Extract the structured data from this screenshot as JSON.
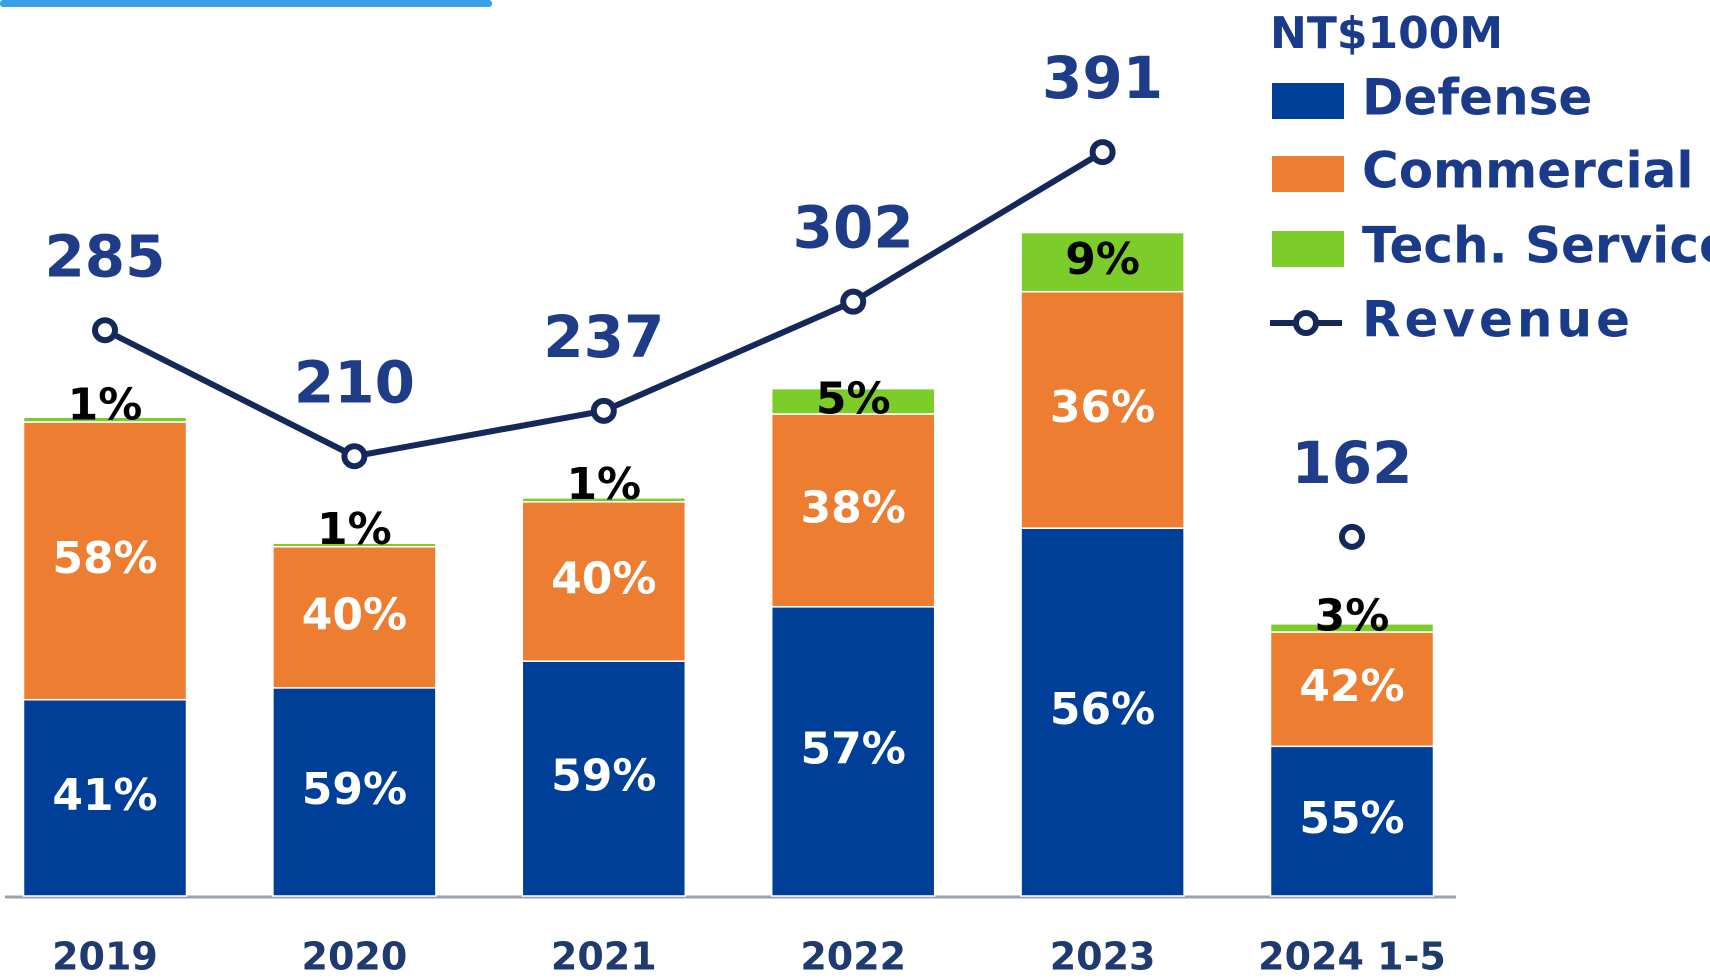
{
  "chart_data": {
    "type": "bar",
    "unit": "NT$100M",
    "categories": [
      "2019",
      "2020",
      "2021",
      "2022",
      "2023",
      "2024 1-5"
    ],
    "series": [
      {
        "name": "Defense",
        "color": "#003f97",
        "values": [
          41,
          59,
          59,
          57,
          56,
          55
        ],
        "value_labels": [
          "41%",
          "59%",
          "59%",
          "57%",
          "56%",
          "55%"
        ]
      },
      {
        "name": "Commercial",
        "color": "#ed7d31",
        "values": [
          58,
          40,
          40,
          38,
          36,
          42
        ],
        "value_labels": [
          "58%",
          "40%",
          "40%",
          "38%",
          "36%",
          "42%"
        ]
      },
      {
        "name": "Tech. Service",
        "color": "#7ccc2a",
        "values": [
          1,
          1,
          1,
          5,
          9,
          3
        ],
        "value_labels": [
          "1%",
          "1%",
          "1%",
          "5%",
          "9%",
          "3%"
        ]
      },
      {
        "name": "Revenue",
        "type": "line",
        "color": "#14285a",
        "values": [
          285,
          210,
          237,
          302,
          391,
          162
        ]
      }
    ]
  }
}
